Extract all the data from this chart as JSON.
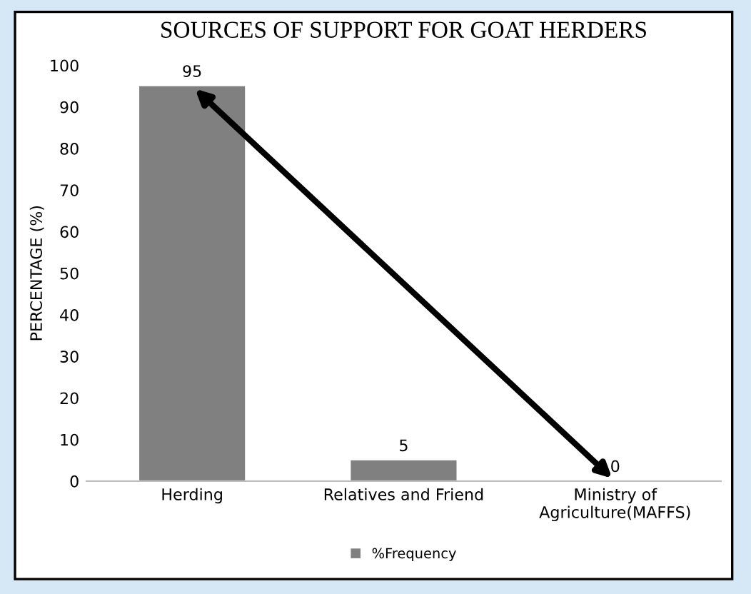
{
  "chart_data": {
    "type": "bar",
    "title": "SOURCES OF SUPPORT FOR GOAT HERDERS",
    "ylabel": "PERCENTAGE (%)",
    "categories": [
      "Herding",
      "Relatives and Friend",
      "Ministry of\nAgriculture(MAFFS)"
    ],
    "series": [
      {
        "name": "%Frequency",
        "color": "#808080",
        "values": [
          95,
          5,
          0
        ]
      }
    ],
    "ylim": [
      0,
      100
    ],
    "yticks": [
      0,
      10,
      20,
      30,
      40,
      50,
      60,
      70,
      80,
      90,
      100
    ],
    "data_labels": true,
    "legend": "bottom",
    "grid": false
  }
}
